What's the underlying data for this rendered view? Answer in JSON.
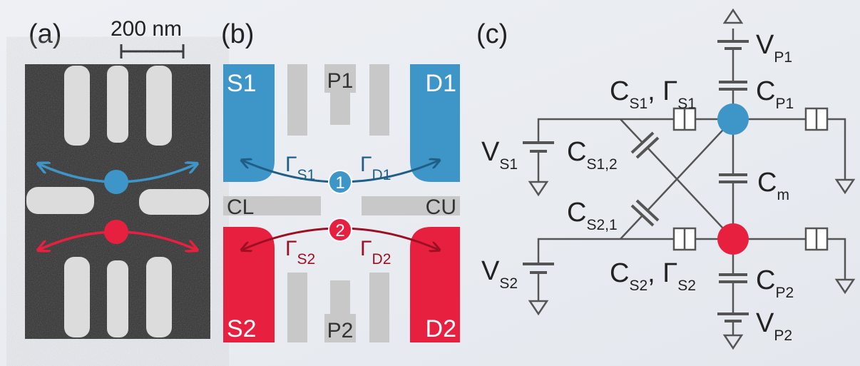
{
  "panels": {
    "a": {
      "label": "(a)",
      "scale_bar": "200 nm"
    },
    "b": {
      "label": "(b)",
      "contacts": {
        "S1": "S1",
        "P1": "P1",
        "D1": "D1",
        "CL": "CL",
        "CU": "CU",
        "S2": "S2",
        "P2": "P2",
        "D2": "D2"
      },
      "dots": [
        "1",
        "2"
      ],
      "rates": {
        "S1": {
          "base": "Γ",
          "sub": "S1"
        },
        "D1": {
          "base": "Γ",
          "sub": "D1"
        },
        "S2": {
          "base": "Γ",
          "sub": "S2"
        },
        "D2": {
          "base": "Γ",
          "sub": "D2"
        }
      }
    },
    "c": {
      "label": "(c)",
      "VP1": {
        "base": "V",
        "sub": "P1"
      },
      "CP1": {
        "base": "C",
        "sub": "P1"
      },
      "CS1": [
        {
          "base": "C",
          "sub": "S1"
        },
        {
          "base": ", Γ",
          "sub": "S1"
        }
      ],
      "VS1": {
        "base": "V",
        "sub": "S1"
      },
      "CS12": {
        "base": "C",
        "sub": "S1,2"
      },
      "Cm": {
        "base": "C",
        "sub": "m"
      },
      "CS21": {
        "base": "C",
        "sub": "S2,1"
      },
      "VS2": {
        "base": "V",
        "sub": "S2"
      },
      "CS2": [
        {
          "base": "C",
          "sub": "S2"
        },
        {
          "base": ", Γ",
          "sub": "S2"
        }
      ],
      "CP2": {
        "base": "C",
        "sub": "P2"
      },
      "VP2": {
        "base": "V",
        "sub": "P2"
      }
    }
  }
}
